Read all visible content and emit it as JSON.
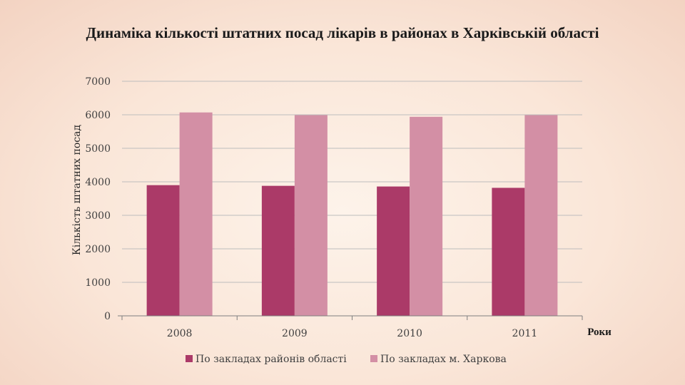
{
  "colors": {
    "series1": "#ab3a68",
    "series2": "#d38fa5",
    "grid": "#bdbdbd",
    "axis": "#7f7f7f"
  },
  "chart_data": {
    "type": "bar",
    "title": "Динаміка кількості штатних посад лікарів в районах в Харківській області",
    "xlabel": "Роки",
    "ylabel": "Кількість штатних посад",
    "categories": [
      "2008",
      "2009",
      "2010",
      "2011"
    ],
    "ylim": [
      0,
      7000
    ],
    "yticks": [
      0,
      1000,
      2000,
      3000,
      4000,
      5000,
      6000,
      7000
    ],
    "grid": true,
    "legend_position": "bottom",
    "series": [
      {
        "name": "По закладах районів області",
        "values": [
          3900,
          3880,
          3860,
          3820
        ]
      },
      {
        "name": "По закладах м. Харкова",
        "values": [
          6070,
          5990,
          5940,
          5990
        ]
      }
    ]
  }
}
